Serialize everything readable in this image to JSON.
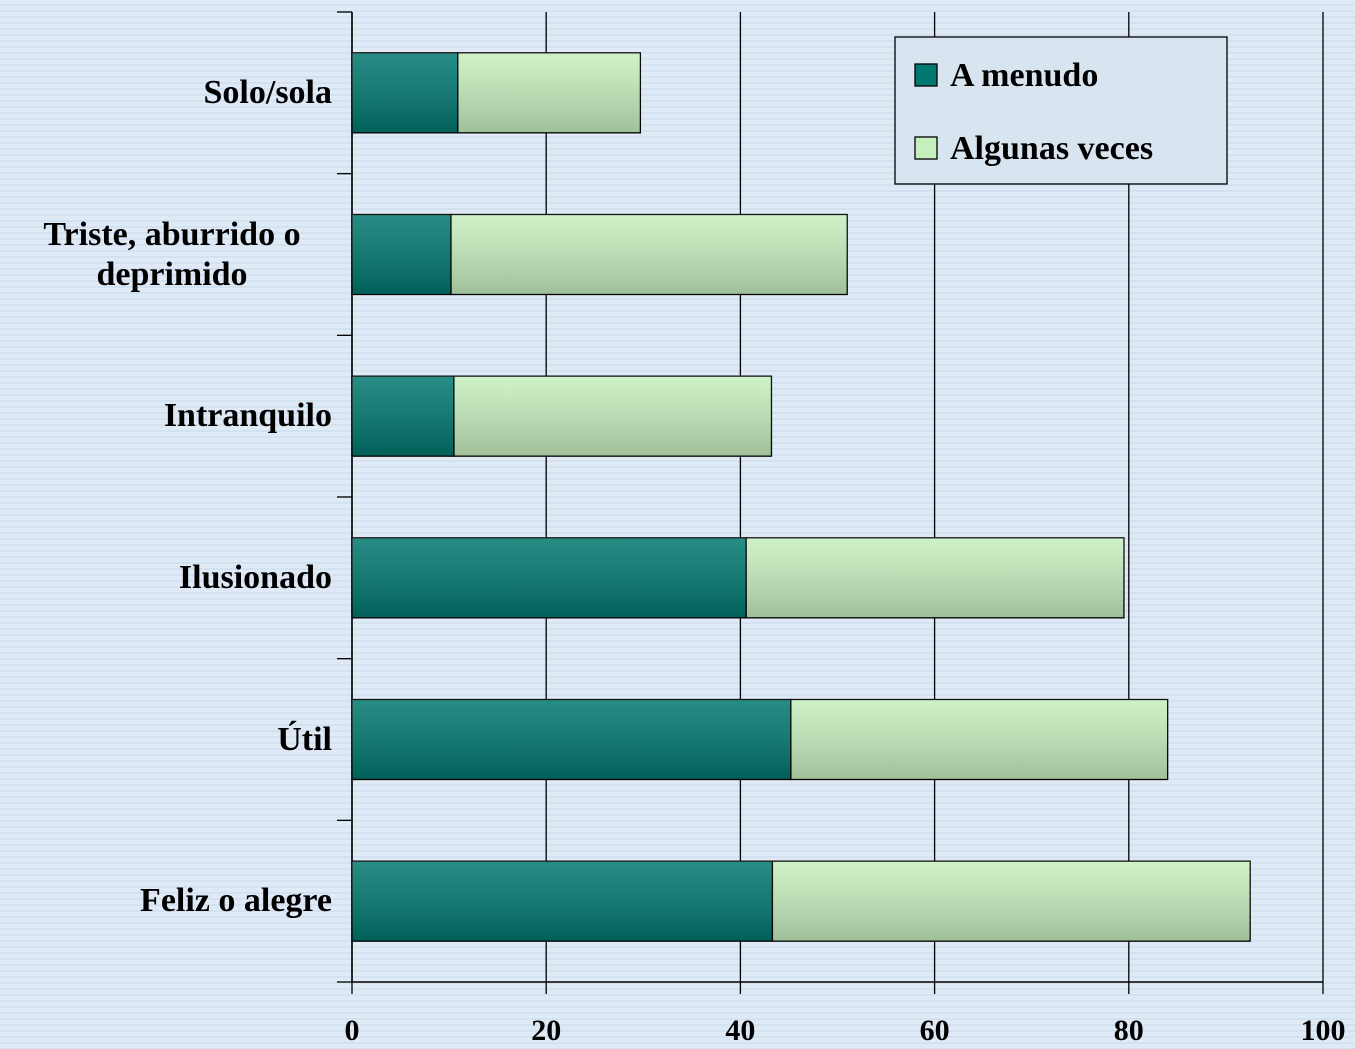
{
  "chart_data": {
    "type": "stacked-bar-horizontal",
    "categories": [
      "Solo/sola",
      "Triste, aburrido o deprimido",
      "Intranquilo",
      "Ilusionado",
      "Útil",
      "Feliz o alegre"
    ],
    "series": [
      {
        "name": "A menudo",
        "color": "#00786f",
        "values": [
          10.9,
          10.2,
          10.5,
          40.6,
          45.2,
          43.3
        ]
      },
      {
        "name": "Algunas veces",
        "color": "#c6efbe",
        "values": [
          18.8,
          40.8,
          32.7,
          38.9,
          38.8,
          49.2
        ]
      }
    ],
    "xlim": [
      0,
      100
    ],
    "xticks": [
      0,
      20,
      40,
      60,
      80,
      100
    ],
    "grid": true,
    "legend": "top-right"
  }
}
